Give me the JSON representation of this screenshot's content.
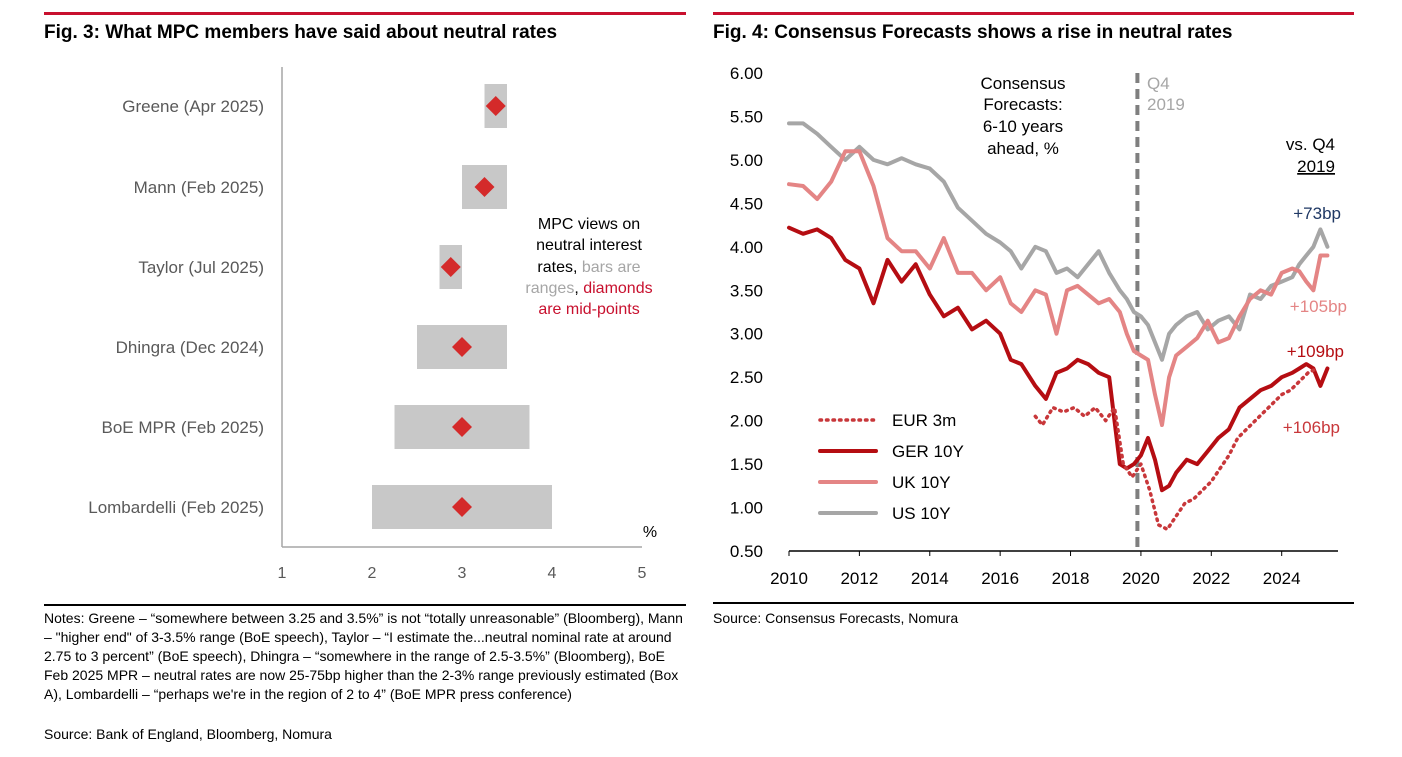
{
  "colors": {
    "accent_red": "#c8102e",
    "diamond": "#d42a2a",
    "range_bar": "#c8c8c8",
    "ger": "#b50d12",
    "uk": "#e48585",
    "us": "#a6a6a6",
    "eur": "#c8373a",
    "vline": "#7f7f7f",
    "us_label": "#1f3864"
  },
  "fig3": {
    "title": "Fig. 3: What MPC members have said about neutral rates",
    "annotation": {
      "line1": "MPC views on",
      "line2": "neutral interest",
      "line3a": "rates, ",
      "line3b": "bars are",
      "line4a": "ranges",
      "line4b": ", ",
      "line4c": "diamonds",
      "line5": "are mid-points"
    },
    "notes": "Notes: Greene – “somewhere between 3.25 and 3.5%” is not “totally unreasonable” (Bloomberg), Mann – \"higher end\" of 3-3.5% range (BoE speech), Taylor – “I estimate the...neutral nominal rate at around 2.75 to 3 percent” (BoE speech), Dhingra – “somewhere in the range of 2.5-3.5%” (Bloomberg), BoE Feb 2025 MPR – neutral rates are now 25-75bp higher than the 2-3% range previously estimated (Box A), Lombardelli – “perhaps we're in the region of 2 to 4” (BoE MPR press conference)",
    "source": "Source: Bank of England, Bloomberg, Nomura"
  },
  "fig4": {
    "title": "Fig. 4: Consensus Forecasts shows a rise in neutral rates",
    "annotation": [
      "Consensus",
      "Forecasts:",
      "6-10 years",
      "ahead, %"
    ],
    "vline_label": [
      "Q4",
      "2019"
    ],
    "vs_label": [
      "vs. Q4",
      "2019"
    ],
    "source": "Source: Consensus Forecasts, Nomura"
  },
  "chart_data": [
    {
      "type": "bar",
      "orientation": "horizontal-range",
      "categories": [
        "Greene (Apr 2025)",
        "Mann (Feb 2025)",
        "Taylor (Jul 2025)",
        "Dhingra (Dec 2024)",
        "BoE MPR (Feb 2025)",
        "Lombardelli (Feb 2025)"
      ],
      "ranges": [
        [
          3.25,
          3.5
        ],
        [
          3.0,
          3.5
        ],
        [
          2.75,
          3.0
        ],
        [
          2.5,
          3.5
        ],
        [
          2.25,
          3.75
        ],
        [
          2.0,
          4.0
        ]
      ],
      "midpoints": [
        3.375,
        3.25,
        2.875,
        3.0,
        3.0,
        3.0
      ],
      "xlim": [
        1,
        5
      ],
      "xticks": [
        1,
        2,
        3,
        4,
        5
      ],
      "xunit": "%"
    },
    {
      "type": "line",
      "xlim": [
        2010,
        2025.6
      ],
      "ylim": [
        0.5,
        6.0
      ],
      "xticks": [
        2010,
        2012,
        2014,
        2016,
        2018,
        2020,
        2022,
        2024
      ],
      "yticks": [
        "0.50",
        "1.00",
        "1.50",
        "2.00",
        "2.50",
        "3.00",
        "3.50",
        "4.00",
        "4.50",
        "5.00",
        "5.50",
        "6.00"
      ],
      "vline_x": 2019.9,
      "legend_placement": "bottom-left",
      "series": [
        {
          "name": "EUR 3m",
          "style": "dotted",
          "x": [
            2017.0,
            2017.2,
            2017.5,
            2017.8,
            2018.1,
            2018.4,
            2018.7,
            2019.0,
            2019.25,
            2019.5,
            2019.75,
            2020.0,
            2020.25,
            2020.5,
            2020.75,
            2021.0,
            2021.25,
            2021.5,
            2021.75,
            2022.0,
            2022.25,
            2022.5,
            2022.75,
            2023.0,
            2023.25,
            2023.5,
            2023.75,
            2024.0,
            2024.25,
            2024.5,
            2024.75,
            2025.0
          ],
          "y": [
            2.05,
            1.95,
            2.15,
            2.1,
            2.15,
            2.05,
            2.15,
            2.0,
            2.15,
            1.5,
            1.35,
            1.5,
            1.2,
            0.8,
            0.75,
            0.9,
            1.05,
            1.1,
            1.2,
            1.3,
            1.45,
            1.6,
            1.8,
            1.9,
            2.0,
            2.1,
            2.2,
            2.3,
            2.35,
            2.45,
            2.55,
            2.6
          ]
        },
        {
          "name": "GER 10Y",
          "style": "solid",
          "x": [
            2010.0,
            2010.4,
            2010.8,
            2011.2,
            2011.6,
            2012.0,
            2012.4,
            2012.8,
            2013.2,
            2013.6,
            2014.0,
            2014.4,
            2014.8,
            2015.2,
            2015.6,
            2016.0,
            2016.3,
            2016.6,
            2017.0,
            2017.3,
            2017.6,
            2017.9,
            2018.2,
            2018.5,
            2018.8,
            2019.1,
            2019.4,
            2019.6,
            2019.8,
            2020.0,
            2020.2,
            2020.4,
            2020.6,
            2020.8,
            2021.0,
            2021.3,
            2021.6,
            2021.9,
            2022.2,
            2022.5,
            2022.8,
            2023.1,
            2023.4,
            2023.7,
            2024.0,
            2024.3,
            2024.5,
            2024.7,
            2024.9,
            2025.1,
            2025.3
          ],
          "y": [
            4.22,
            4.15,
            4.2,
            4.1,
            3.85,
            3.75,
            3.35,
            3.85,
            3.6,
            3.8,
            3.45,
            3.2,
            3.3,
            3.05,
            3.15,
            3.0,
            2.7,
            2.65,
            2.4,
            2.25,
            2.55,
            2.6,
            2.7,
            2.65,
            2.55,
            2.5,
            1.5,
            1.45,
            1.5,
            1.6,
            1.8,
            1.55,
            1.2,
            1.25,
            1.4,
            1.55,
            1.5,
            1.65,
            1.8,
            1.9,
            2.15,
            2.25,
            2.35,
            2.4,
            2.5,
            2.55,
            2.6,
            2.65,
            2.6,
            2.4,
            2.6
          ]
        },
        {
          "name": "UK 10Y",
          "style": "solid",
          "x": [
            2010.0,
            2010.4,
            2010.8,
            2011.2,
            2011.6,
            2012.0,
            2012.4,
            2012.8,
            2013.2,
            2013.6,
            2014.0,
            2014.4,
            2014.8,
            2015.2,
            2015.6,
            2016.0,
            2016.3,
            2016.6,
            2017.0,
            2017.3,
            2017.6,
            2017.9,
            2018.2,
            2018.5,
            2018.8,
            2019.1,
            2019.4,
            2019.6,
            2019.8,
            2020.0,
            2020.2,
            2020.4,
            2020.6,
            2020.8,
            2021.0,
            2021.3,
            2021.6,
            2021.9,
            2022.2,
            2022.5,
            2022.8,
            2023.1,
            2023.4,
            2023.7,
            2024.0,
            2024.3,
            2024.5,
            2024.7,
            2024.9,
            2025.1,
            2025.3
          ],
          "y": [
            4.72,
            4.7,
            4.55,
            4.75,
            5.1,
            5.1,
            4.7,
            4.1,
            3.95,
            3.95,
            3.75,
            4.1,
            3.7,
            3.7,
            3.5,
            3.65,
            3.35,
            3.25,
            3.5,
            3.45,
            3.0,
            3.5,
            3.55,
            3.45,
            3.35,
            3.4,
            3.25,
            3.0,
            2.8,
            2.75,
            2.7,
            2.3,
            1.95,
            2.5,
            2.75,
            2.85,
            2.95,
            3.15,
            2.9,
            2.95,
            3.2,
            3.4,
            3.5,
            3.45,
            3.7,
            3.75,
            3.72,
            3.6,
            3.5,
            3.9,
            3.9
          ]
        },
        {
          "name": "US 10Y",
          "style": "solid",
          "x": [
            2010.0,
            2010.4,
            2010.8,
            2011.2,
            2011.6,
            2012.0,
            2012.4,
            2012.8,
            2013.2,
            2013.6,
            2014.0,
            2014.4,
            2014.8,
            2015.2,
            2015.6,
            2016.0,
            2016.3,
            2016.6,
            2017.0,
            2017.3,
            2017.6,
            2017.9,
            2018.2,
            2018.5,
            2018.8,
            2019.1,
            2019.4,
            2019.6,
            2019.8,
            2020.0,
            2020.2,
            2020.4,
            2020.6,
            2020.8,
            2021.0,
            2021.3,
            2021.6,
            2021.9,
            2022.2,
            2022.5,
            2022.8,
            2023.1,
            2023.4,
            2023.7,
            2024.0,
            2024.3,
            2024.5,
            2024.7,
            2024.9,
            2025.1,
            2025.3
          ],
          "y": [
            5.42,
            5.42,
            5.3,
            5.15,
            5.0,
            5.15,
            5.0,
            4.95,
            5.02,
            4.95,
            4.9,
            4.75,
            4.45,
            4.3,
            4.15,
            4.05,
            3.95,
            3.75,
            4.0,
            3.95,
            3.7,
            3.75,
            3.65,
            3.8,
            3.95,
            3.7,
            3.5,
            3.4,
            3.25,
            3.2,
            3.1,
            2.9,
            2.7,
            3.0,
            3.1,
            3.2,
            3.25,
            3.05,
            3.15,
            3.2,
            3.05,
            3.45,
            3.4,
            3.55,
            3.6,
            3.65,
            3.8,
            3.9,
            4.0,
            4.2,
            4.0
          ]
        }
      ],
      "end_labels": [
        "+73bp",
        "+105bp",
        "+109bp",
        "+106bp"
      ]
    }
  ]
}
